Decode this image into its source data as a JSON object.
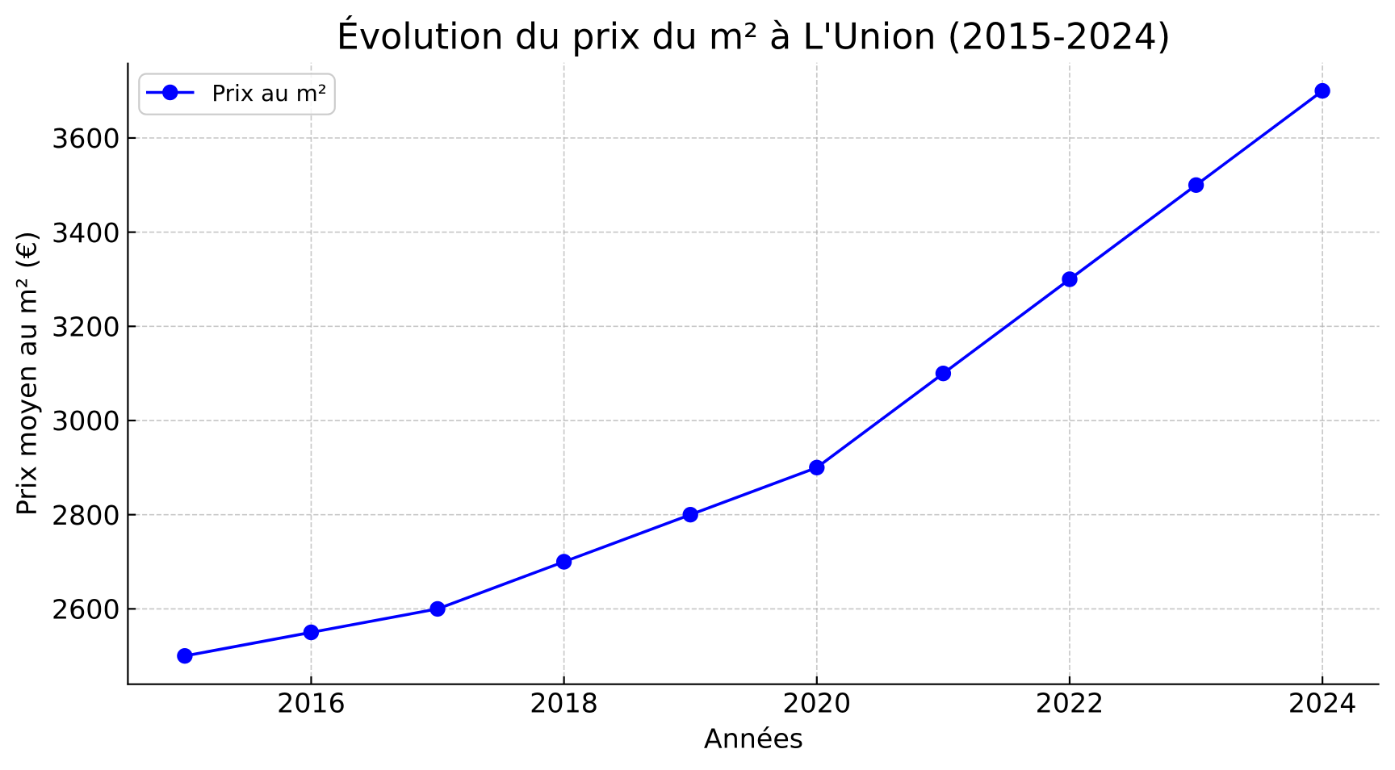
{
  "chart_data": {
    "type": "line",
    "title": "Évolution du prix du m² à L'Union (2015-2024)",
    "xlabel": "Années",
    "ylabel": "Prix moyen au m² (€)",
    "series": [
      {
        "name": "Prix au m²",
        "x": [
          2015,
          2016,
          2017,
          2018,
          2019,
          2020,
          2021,
          2022,
          2023,
          2024
        ],
        "values": [
          2500,
          2550,
          2600,
          2700,
          2800,
          2900,
          3100,
          3300,
          3500,
          3700
        ],
        "color": "#0000ff",
        "marker": "circle"
      }
    ],
    "legend": {
      "entries": [
        "Prix au m²"
      ],
      "position": "upper left",
      "frame": true
    },
    "xticks": [
      2016,
      2018,
      2020,
      2022,
      2024
    ],
    "yticks": [
      2600,
      2800,
      3000,
      3200,
      3400,
      3600
    ],
    "xlim": [
      2014.55,
      2024.45
    ],
    "ylim": [
      2440,
      3760
    ],
    "grid": {
      "visible": true,
      "linestyle": "dashed"
    },
    "colors": {
      "line": "#0000ff",
      "text": "#000000",
      "spine": "#000000",
      "grid": "#b0b0b0",
      "legend_border": "#cccccc",
      "background": "#ffffff"
    }
  }
}
